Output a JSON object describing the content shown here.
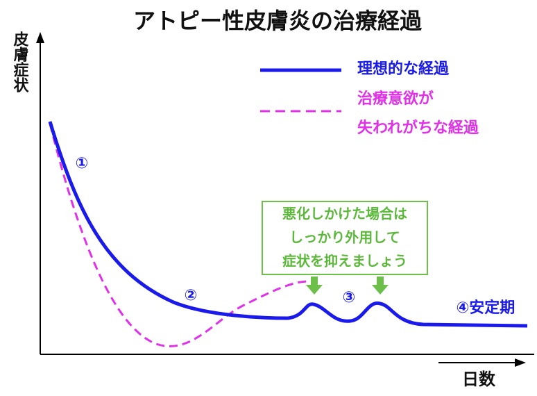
{
  "title": "アトピー性皮膚炎の治療経過",
  "axes": {
    "y_label": "皮膚症状",
    "x_label": "日数"
  },
  "legend": {
    "ideal": "理想的な経過",
    "unmotivated_line1": "治療意欲が",
    "unmotivated_line2": "失われがちな経過"
  },
  "stages": {
    "s1": "①",
    "s2": "②",
    "s3": "③",
    "s4": "④安定期"
  },
  "callout": {
    "lines": [
      "悪化しかけた場合は",
      "しっかり外用して",
      "症状を抑えましょう"
    ]
  }
}
